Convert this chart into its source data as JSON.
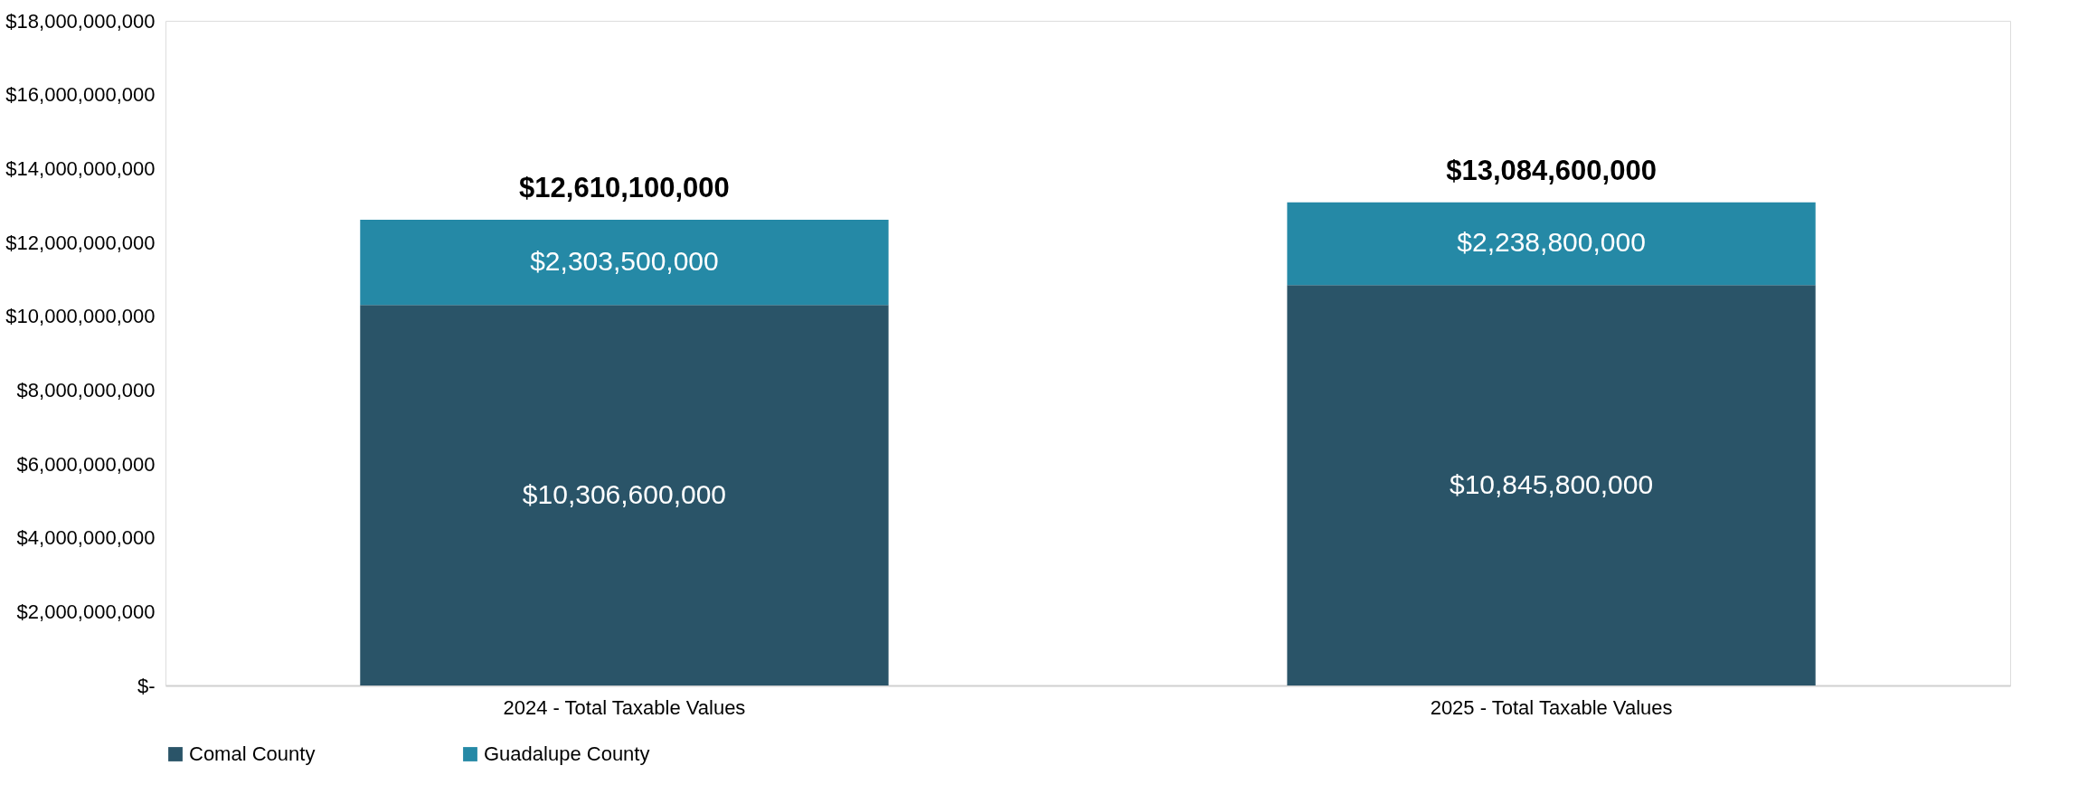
{
  "chart_data": {
    "type": "bar",
    "stacked": true,
    "categories": [
      "2024 - Total Taxable Values",
      "2025 - Total Taxable Values"
    ],
    "series": [
      {
        "name": "Comal County",
        "color": "#2a5468",
        "values": [
          10306600000,
          10845800000
        ],
        "value_labels": [
          "$10,306,600,000",
          "$10,845,800,000"
        ]
      },
      {
        "name": "Guadalupe County",
        "color": "#2589a6",
        "values": [
          2303500000,
          2238800000
        ],
        "value_labels": [
          "$2,303,500,000",
          "$2,238,800,000"
        ]
      }
    ],
    "totals": [
      "$12,610,100,000",
      "$13,084,600,000"
    ],
    "ylim": [
      0,
      18000000000
    ],
    "yticks": [
      {
        "value": 0,
        "label": "$-"
      },
      {
        "value": 2000000000,
        "label": "$2,000,000,000"
      },
      {
        "value": 4000000000,
        "label": "$4,000,000,000"
      },
      {
        "value": 6000000000,
        "label": "$6,000,000,000"
      },
      {
        "value": 8000000000,
        "label": "$8,000,000,000"
      },
      {
        "value": 10000000000,
        "label": "$10,000,000,000"
      },
      {
        "value": 12000000000,
        "label": "$12,000,000,000"
      },
      {
        "value": 14000000000,
        "label": "$14,000,000,000"
      },
      {
        "value": 16000000000,
        "label": "$16,000,000,000"
      },
      {
        "value": 18000000000,
        "label": "$18,000,000,000"
      }
    ],
    "grid": false,
    "legend": "bottom"
  }
}
